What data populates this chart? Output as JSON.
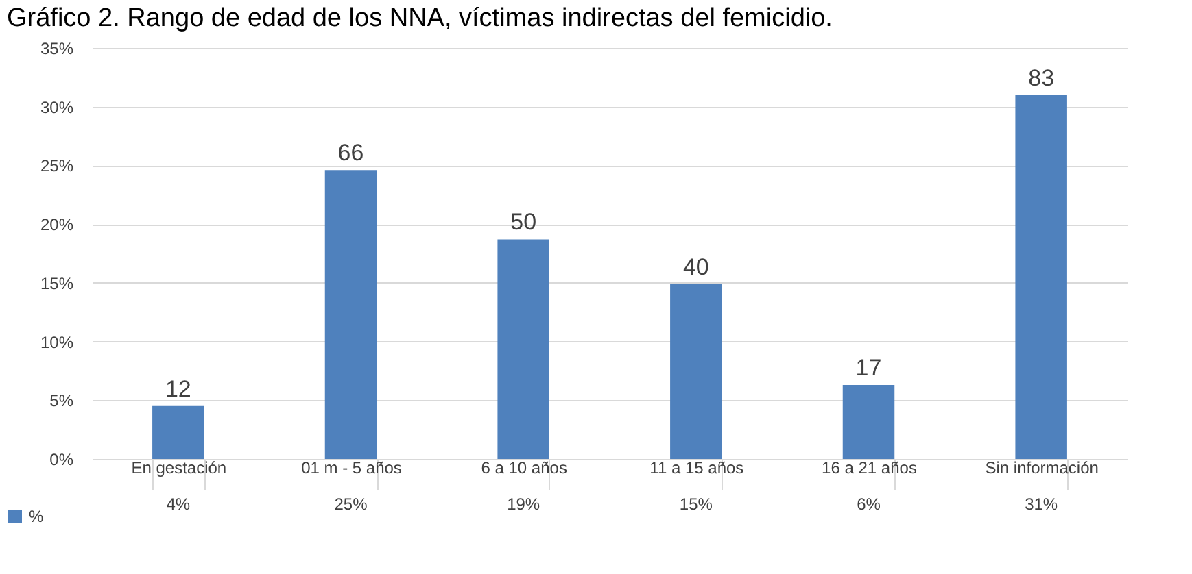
{
  "chart_data": {
    "type": "bar",
    "title": "Gráfico 2. Rango de edad de los NNA, víctimas indirectas del femicidio.",
    "categories": [
      "En gestación",
      "01 m - 5 años",
      "6 a 10 años",
      "11 a 15 años",
      "16 a 21 años",
      "Sin información"
    ],
    "series": [
      {
        "name": "%",
        "color": "#4f81bd",
        "values": [
          4.5,
          24.6,
          18.7,
          14.9,
          6.3,
          31.0
        ],
        "value_labels": [
          "4%",
          "25%",
          "19%",
          "15%",
          "6%",
          "31%"
        ]
      }
    ],
    "ylim": [
      0,
      35
    ],
    "yticks": [
      {
        "value": 0,
        "label": "0%"
      },
      {
        "value": 5,
        "label": "5%"
      },
      {
        "value": 10,
        "label": "10%"
      },
      {
        "value": 15,
        "label": "15%"
      },
      {
        "value": 20,
        "label": "20%"
      },
      {
        "value": 25,
        "label": "25%"
      },
      {
        "value": 30,
        "label": "30%"
      },
      {
        "value": 35,
        "label": "35%"
      }
    ],
    "grid": "y",
    "legend": "bottom left",
    "annotations": [
      {
        "text": "12",
        "x": "En gestación",
        "y": 4.5
      },
      {
        "text": "66",
        "x": "01 m - 5 años",
        "y": 24.6
      },
      {
        "text": "50",
        "x": "6 a 10 años",
        "y": 18.7
      },
      {
        "text": "40",
        "x": "11 a 15 años",
        "y": 14.9
      },
      {
        "text": "17",
        "x": "16 a 21 años",
        "y": 6.3
      },
      {
        "text": "83",
        "x": "Sin información",
        "y": 31.0
      }
    ]
  }
}
